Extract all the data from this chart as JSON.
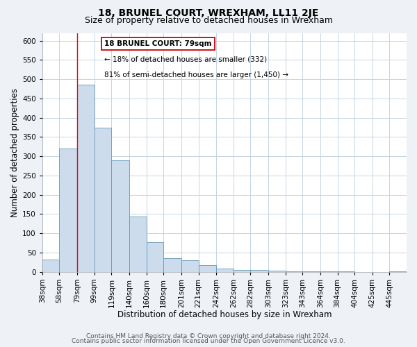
{
  "title": "18, BRUNEL COURT, WREXHAM, LL11 2JE",
  "subtitle": "Size of property relative to detached houses in Wrexham",
  "xlabel": "Distribution of detached houses by size in Wrexham",
  "ylabel": "Number of detached properties",
  "bar_color": "#ccdcec",
  "bar_edge_color": "#6699bb",
  "red_line_x": 79,
  "categories": [
    "38sqm",
    "58sqm",
    "79sqm",
    "99sqm",
    "119sqm",
    "140sqm",
    "160sqm",
    "180sqm",
    "201sqm",
    "221sqm",
    "242sqm",
    "262sqm",
    "282sqm",
    "303sqm",
    "323sqm",
    "343sqm",
    "364sqm",
    "384sqm",
    "404sqm",
    "425sqm",
    "445sqm"
  ],
  "bin_edges": [
    38,
    58,
    79,
    99,
    119,
    140,
    160,
    180,
    201,
    221,
    242,
    262,
    282,
    303,
    323,
    343,
    364,
    384,
    404,
    425,
    445,
    465
  ],
  "values": [
    32,
    320,
    485,
    375,
    290,
    144,
    77,
    35,
    30,
    18,
    8,
    5,
    5,
    3,
    2,
    1,
    1,
    1,
    0,
    0,
    1
  ],
  "ylim": [
    0,
    620
  ],
  "yticks": [
    0,
    50,
    100,
    150,
    200,
    250,
    300,
    350,
    400,
    450,
    500,
    550,
    600
  ],
  "annotation_title": "18 BRUNEL COURT: 79sqm",
  "annotation_line1": "← 18% of detached houses are smaller (332)",
  "annotation_line2": "81% of semi-detached houses are larger (1,450) →",
  "footer_line1": "Contains HM Land Registry data © Crown copyright and database right 2024.",
  "footer_line2": "Contains public sector information licensed under the Open Government Licence v3.0.",
  "bg_color": "#eef2f7",
  "plot_bg_color": "#ffffff",
  "grid_color": "#c5d5e5",
  "title_fontsize": 10,
  "subtitle_fontsize": 9,
  "axis_label_fontsize": 8.5,
  "tick_fontsize": 7.5,
  "footer_fontsize": 6.5
}
